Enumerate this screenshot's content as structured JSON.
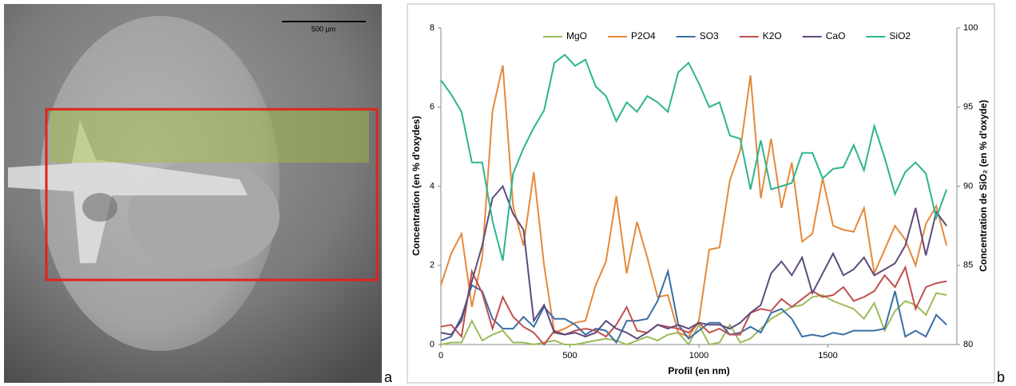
{
  "image": {
    "scale_label": "500 µm"
  },
  "panel_labels": [
    "a",
    "b"
  ],
  "chart_data": {
    "type": "line",
    "xlabel": "Profil (en nm)",
    "ylabel": "Concentration (en % d'oxydes)",
    "y2label": "Concentration de SiO₂ (en % d'oxyde)",
    "xlim": [
      0,
      2000
    ],
    "xticks": [
      0,
      500,
      1000,
      1500
    ],
    "ylim": [
      0,
      8
    ],
    "yticks": [
      0,
      2,
      4,
      6,
      8
    ],
    "y2lim": [
      80,
      100
    ],
    "y2ticks": [
      80,
      85,
      90,
      95,
      100
    ],
    "grid": false,
    "legend": "top",
    "x": [
      0,
      40,
      80,
      120,
      160,
      200,
      240,
      280,
      320,
      360,
      400,
      440,
      480,
      520,
      560,
      600,
      640,
      680,
      720,
      760,
      800,
      840,
      880,
      920,
      960,
      1000,
      1040,
      1080,
      1120,
      1160,
      1200,
      1240,
      1280,
      1320,
      1360,
      1400,
      1440,
      1480,
      1520,
      1560,
      1600,
      1640,
      1680,
      1720,
      1760,
      1800,
      1840,
      1880,
      1920,
      1960
    ],
    "series": [
      {
        "name": "MgO",
        "color": "#9bbb59",
        "values": [
          0.0,
          0.05,
          0.05,
          0.6,
          0.1,
          0.25,
          0.35,
          0.05,
          0.05,
          0.0,
          0.05,
          0.1,
          0.0,
          0.0,
          0.05,
          0.1,
          0.15,
          0.1,
          0.0,
          0.1,
          0.2,
          0.1,
          0.25,
          0.3,
          0.0,
          0.5,
          0.0,
          0.05,
          0.5,
          0.05,
          0.15,
          0.4,
          0.65,
          0.8,
          0.95,
          1.0,
          1.2,
          1.25,
          1.1,
          1.0,
          0.9,
          0.65,
          1.05,
          0.35,
          0.85,
          1.1,
          1.0,
          0.75,
          1.3,
          1.25
        ]
      },
      {
        "name": "P2O4",
        "color": "#e5893b",
        "values": [
          1.5,
          2.3,
          2.8,
          0.95,
          2.2,
          5.9,
          7.05,
          3.5,
          2.5,
          4.35,
          2.0,
          0.3,
          0.4,
          0.55,
          0.6,
          1.5,
          2.1,
          3.75,
          1.8,
          3.1,
          2.2,
          1.2,
          1.25,
          0.3,
          0.2,
          0.6,
          2.4,
          2.45,
          4.15,
          4.9,
          6.8,
          3.7,
          5.2,
          3.45,
          4.6,
          2.6,
          2.8,
          4.2,
          3.0,
          2.9,
          2.85,
          3.45,
          1.8,
          2.4,
          3.0,
          2.65,
          2.0,
          3.05,
          3.5,
          2.5
        ]
      },
      {
        "name": "SO3",
        "color": "#3a6ea5",
        "values": [
          0.1,
          0.2,
          0.7,
          1.5,
          1.35,
          0.65,
          0.4,
          0.4,
          0.7,
          0.45,
          0.95,
          0.65,
          0.65,
          0.5,
          0.25,
          0.4,
          0.35,
          0.05,
          0.6,
          0.6,
          0.65,
          1.1,
          1.85,
          0.5,
          0.15,
          0.35,
          0.55,
          0.55,
          0.25,
          0.3,
          0.45,
          0.3,
          0.8,
          0.9,
          0.65,
          0.2,
          0.25,
          0.2,
          0.3,
          0.25,
          0.35,
          0.35,
          0.35,
          0.4,
          1.35,
          0.2,
          0.35,
          0.2,
          0.75,
          0.5
        ]
      },
      {
        "name": "K2O",
        "color": "#c0504d",
        "values": [
          0.45,
          0.5,
          0.2,
          1.85,
          1.3,
          0.4,
          1.2,
          0.7,
          0.45,
          0.3,
          0.0,
          0.35,
          0.25,
          0.35,
          0.4,
          0.35,
          0.2,
          0.5,
          0.95,
          0.35,
          0.3,
          0.5,
          0.45,
          0.4,
          0.3,
          0.55,
          0.3,
          0.4,
          0.25,
          0.25,
          0.8,
          0.9,
          0.85,
          1.15,
          0.95,
          1.15,
          1.35,
          1.2,
          1.25,
          1.45,
          1.1,
          1.2,
          1.35,
          1.75,
          1.45,
          1.95,
          0.9,
          1.45,
          1.55,
          1.6
        ]
      },
      {
        "name": "CaO",
        "color": "#5f4a7b",
        "values": [
          0.3,
          0.25,
          0.6,
          1.6,
          2.5,
          3.7,
          4.0,
          3.3,
          2.9,
          0.6,
          1.0,
          0.3,
          0.25,
          0.3,
          0.2,
          0.3,
          0.6,
          0.4,
          0.3,
          0.15,
          0.3,
          0.5,
          0.4,
          0.5,
          0.4,
          0.55,
          0.5,
          0.5,
          0.4,
          0.55,
          0.8,
          1.0,
          1.8,
          2.1,
          1.75,
          2.2,
          1.3,
          1.8,
          2.3,
          1.75,
          1.9,
          2.2,
          1.75,
          1.9,
          2.05,
          2.5,
          3.45,
          2.25,
          3.35,
          3.0
        ]
      },
      {
        "name": "SiO2",
        "color": "#2bb58f",
        "axis": "y2",
        "values": [
          96.7,
          95.8,
          94.7,
          91.5,
          91.5,
          87.8,
          85.3,
          90.8,
          92.4,
          93.7,
          94.8,
          97.8,
          98.3,
          97.6,
          98.0,
          96.3,
          95.7,
          94.1,
          95.3,
          94.7,
          95.7,
          95.3,
          94.7,
          97.2,
          97.8,
          96.5,
          95.0,
          95.3,
          93.2,
          93.0,
          89.8,
          92.9,
          89.8,
          90.0,
          90.2,
          92.1,
          92.1,
          90.5,
          91.1,
          91.2,
          92.6,
          91.0,
          93.8,
          91.8,
          89.5,
          90.9,
          91.5,
          90.8,
          88.0,
          89.8
        ]
      }
    ]
  }
}
